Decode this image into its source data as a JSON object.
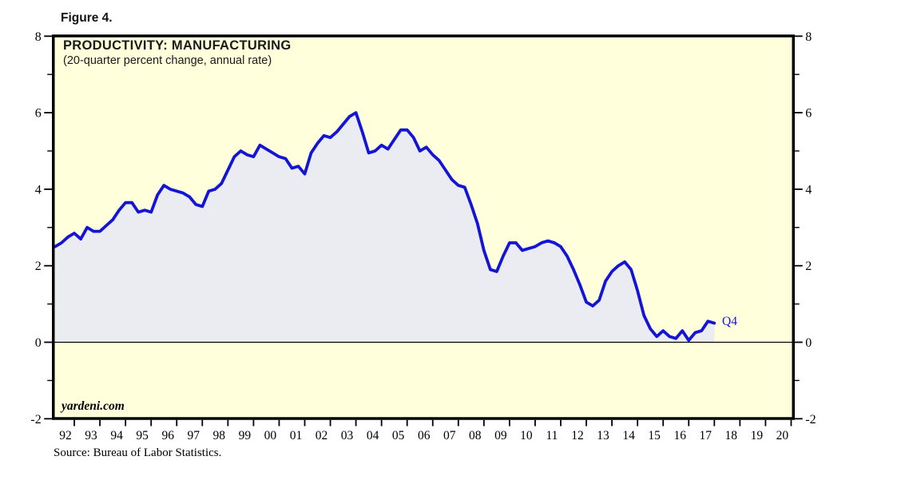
{
  "figure_label": "Figure 4.",
  "source_note": "Source: Bureau of Labor Statistics.",
  "chart_data": {
    "type": "line",
    "title": "PRODUCTIVITY: MANUFACTURING",
    "subtitle": "(20-quarter percent change, annual rate)",
    "watermark": "yardeni.com",
    "end_label": "Q4",
    "frequency": "quarterly",
    "start": "1992Q1",
    "end": "2017Q4",
    "x_tick_labels": [
      "92",
      "93",
      "94",
      "95",
      "96",
      "97",
      "98",
      "99",
      "00",
      "01",
      "02",
      "03",
      "04",
      "05",
      "06",
      "07",
      "08",
      "09",
      "10",
      "11",
      "12",
      "13",
      "14",
      "15",
      "16",
      "17",
      "18",
      "19",
      "20"
    ],
    "x_axis_end_year": 2021,
    "ylim": [
      -2,
      8
    ],
    "y_major_ticks": [
      -2,
      0,
      2,
      4,
      6,
      8
    ],
    "y_minor_ticks": [
      -1,
      1,
      3,
      5,
      7
    ],
    "zero_line": true,
    "grid": false,
    "legend_position": "none",
    "area_fill_to_zero": true,
    "values": [
      2.5,
      2.6,
      2.75,
      2.85,
      2.7,
      3.0,
      2.9,
      2.9,
      3.05,
      3.2,
      3.45,
      3.65,
      3.65,
      3.4,
      3.45,
      3.4,
      3.85,
      4.1,
      4.0,
      3.95,
      3.9,
      3.8,
      3.6,
      3.55,
      3.95,
      4.0,
      4.15,
      4.5,
      4.85,
      5.0,
      4.9,
      4.85,
      5.15,
      5.05,
      4.95,
      4.85,
      4.8,
      4.55,
      4.6,
      4.4,
      4.95,
      5.2,
      5.4,
      5.35,
      5.5,
      5.7,
      5.9,
      6.0,
      5.5,
      4.95,
      5.0,
      5.15,
      5.05,
      5.3,
      5.55,
      5.55,
      5.35,
      5.0,
      5.1,
      4.9,
      4.75,
      4.5,
      4.25,
      4.1,
      4.05,
      3.6,
      3.1,
      2.4,
      1.9,
      1.85,
      2.25,
      2.6,
      2.6,
      2.4,
      2.45,
      2.5,
      2.6,
      2.65,
      2.6,
      2.5,
      2.25,
      1.9,
      1.5,
      1.05,
      0.95,
      1.1,
      1.6,
      1.85,
      2.0,
      2.1,
      1.9,
      1.35,
      0.7,
      0.35,
      0.15,
      0.3,
      0.15,
      0.1,
      0.3,
      0.05,
      0.25,
      0.3,
      0.55,
      0.5
    ],
    "colors": {
      "line": "#1414d6",
      "area_fill": "#ebebf2",
      "plot_background": "#ffffdb",
      "axis": "#000000",
      "text": "#000000"
    }
  }
}
